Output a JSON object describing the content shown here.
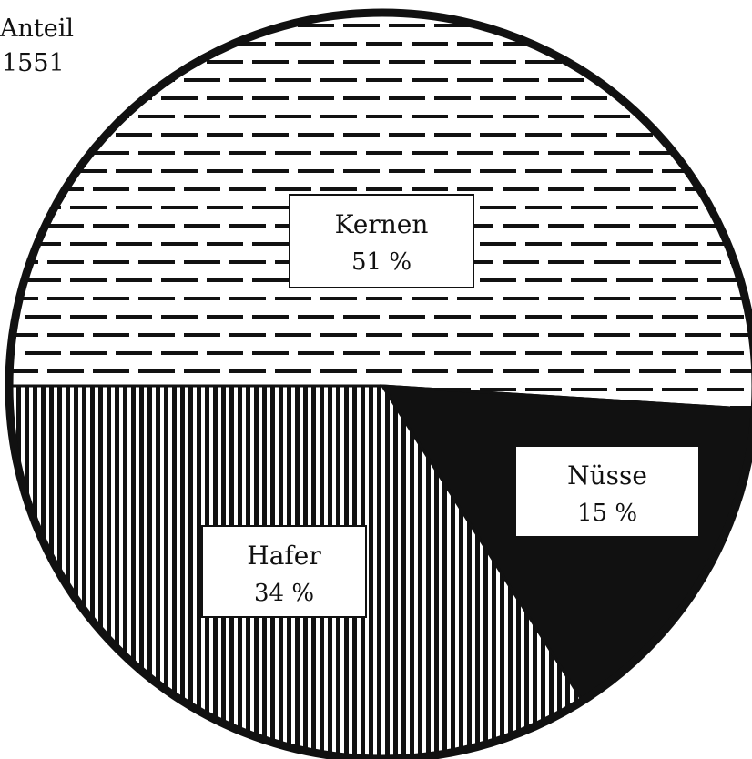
{
  "header": {
    "line1": "Anteil",
    "line2": "1551"
  },
  "chart_data": {
    "type": "pie",
    "title": "Anteil 1551",
    "slices": [
      {
        "label": "Kernen",
        "value": 51,
        "value_text": "51 %",
        "fill": "horizontal-dash-hatch"
      },
      {
        "label": "Nüsse",
        "value": 15,
        "value_text": "15 %",
        "fill": "solid-black"
      },
      {
        "label": "Hafer",
        "value": 34,
        "value_text": "34 %",
        "fill": "vertical-line-hatch"
      }
    ],
    "colors": {
      "ink": "#111111",
      "paper": "#ffffff"
    }
  }
}
